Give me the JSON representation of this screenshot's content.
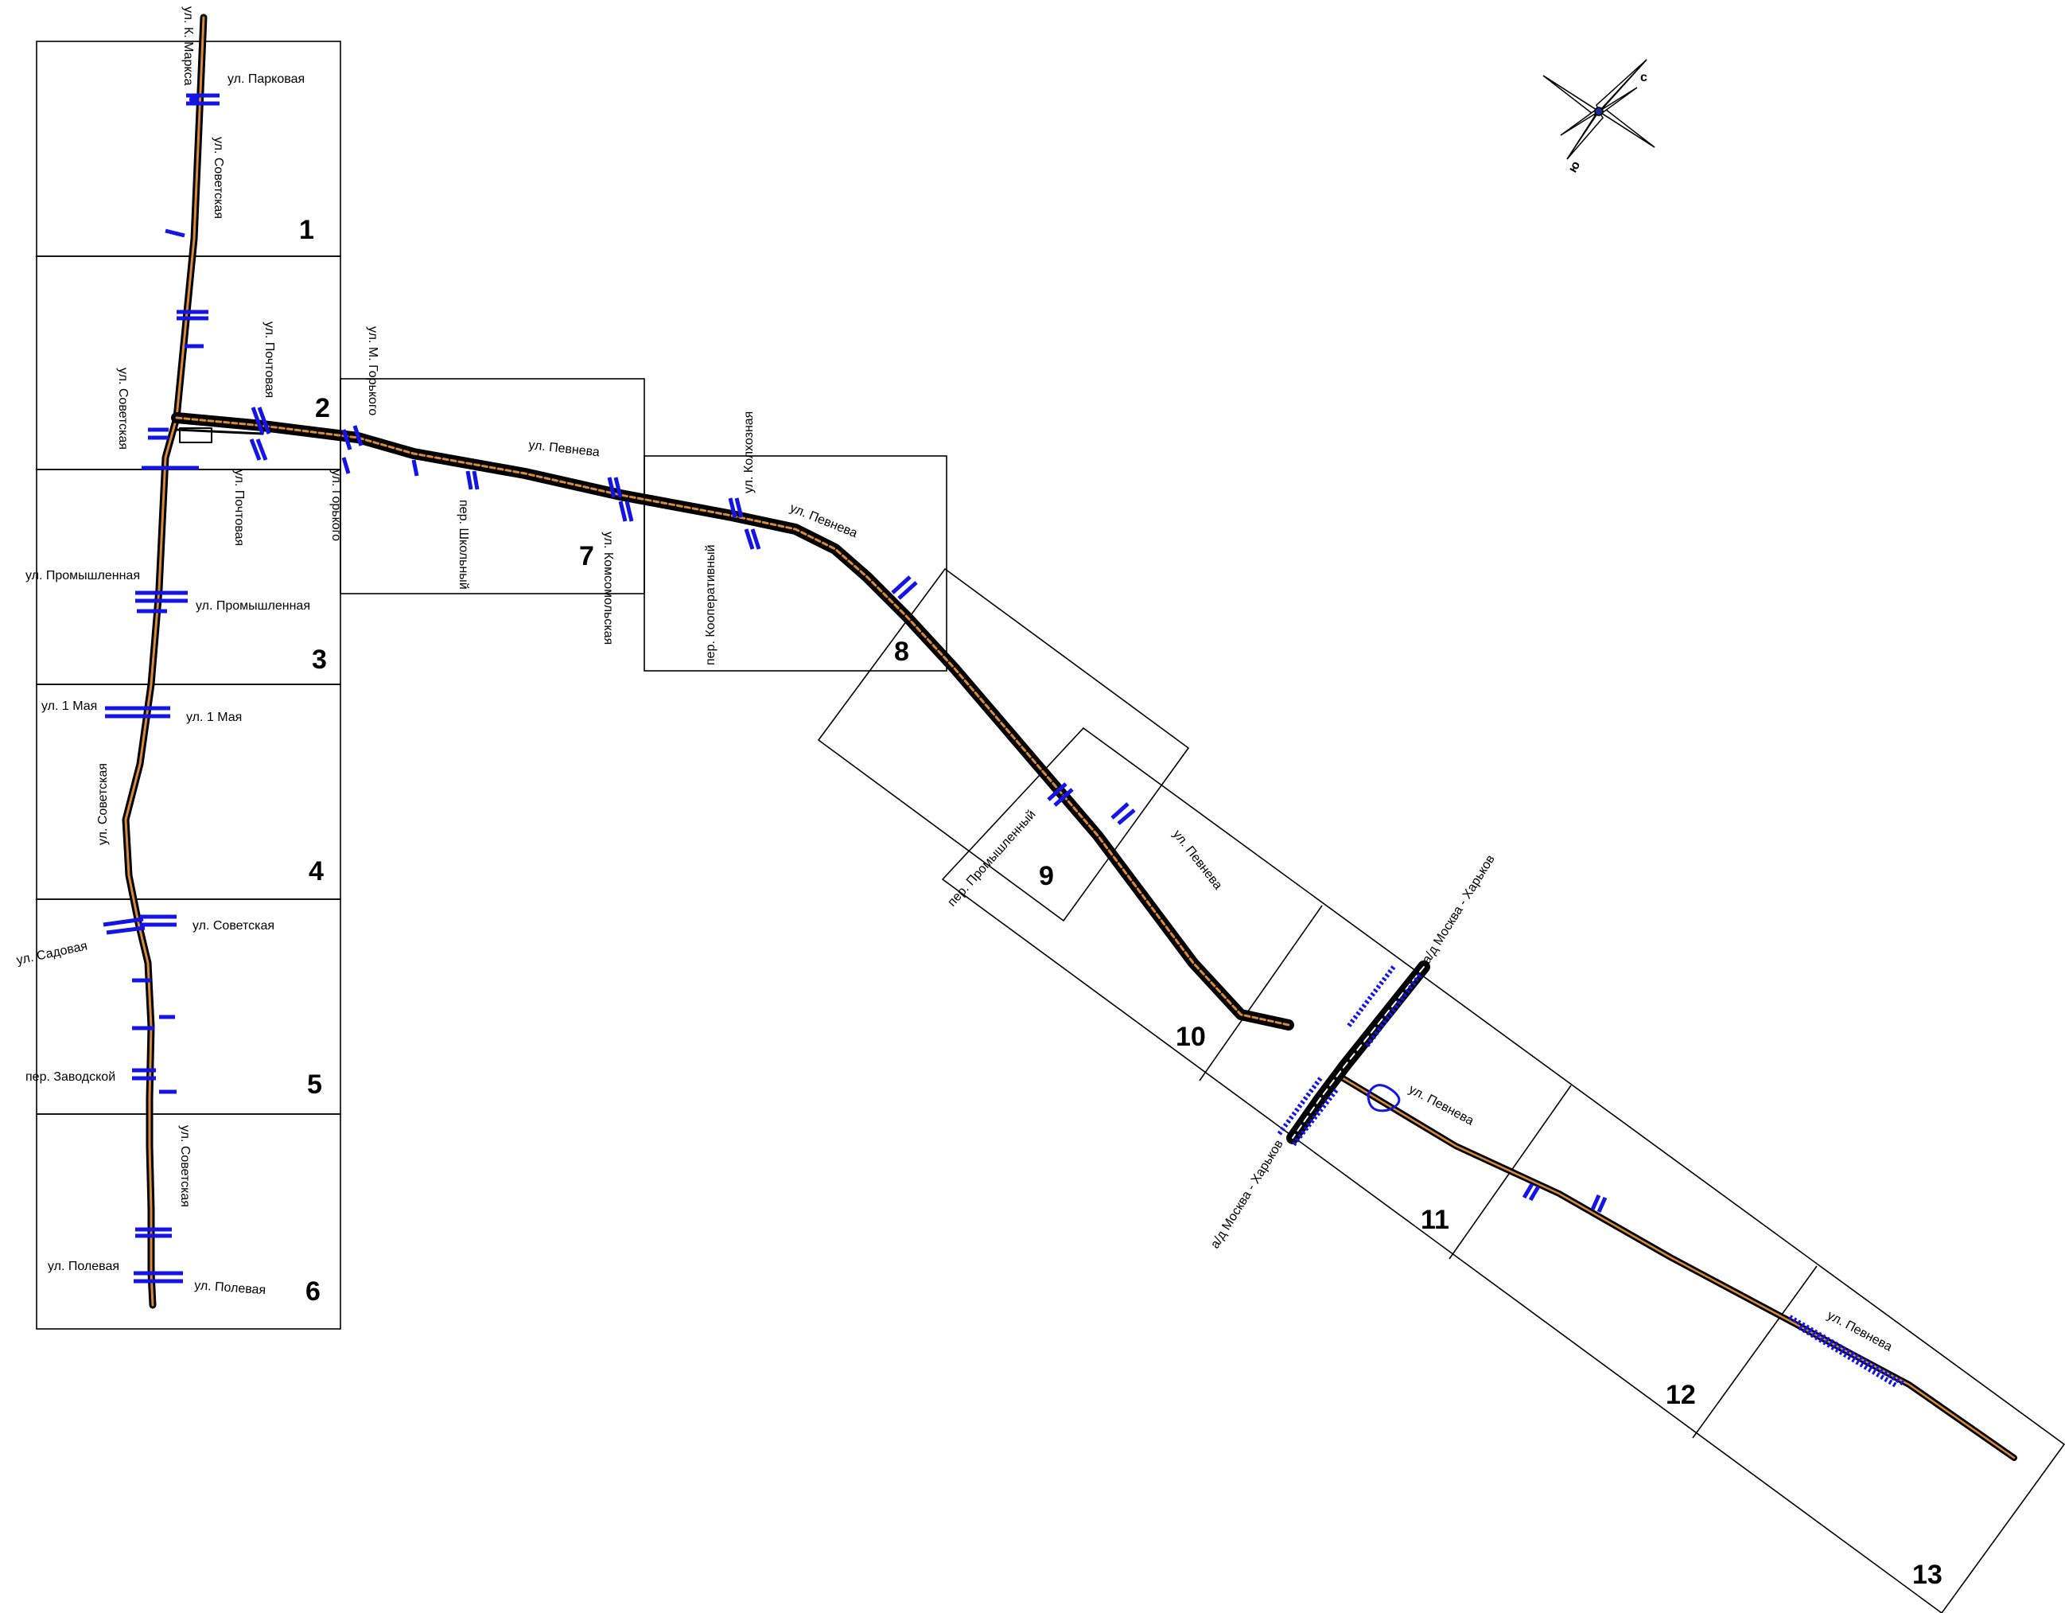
{
  "sheets": [
    "1",
    "2",
    "3",
    "4",
    "5",
    "6",
    "7",
    "8",
    "9",
    "10",
    "11",
    "12",
    "13"
  ],
  "streets": {
    "k_marksa": "ул. К. Маркса",
    "parkovaya": "ул. Парковая",
    "sovetskaya": "ул. Советская",
    "pochtovaya": "ул. Почтовая",
    "m_gorkogo": "ул. М. Горького",
    "gorkogo": "ул. Горького",
    "pevneva": "ул. Певнева",
    "shkolny": "пер. Школьный",
    "komsomolskaya": "ул. Комсомольская",
    "kolkhoznaya": "ул. Колхозная",
    "kooperativny": "пер. Кооперативный",
    "promyshlennaya": "ул. Промышленная",
    "may1": "ул. 1 Мая",
    "sadovaya": "ул. Садовая",
    "zavodskoy": "пер. Заводской",
    "polevaya": "ул. Полевая",
    "promyshlenny": "пер. Промышленный",
    "highway": "а/д Москва - Харьков"
  },
  "compass": {
    "north": "с",
    "south": "ю"
  },
  "colors": {
    "road": "#000000",
    "axis": "#d98a3a",
    "crossing": "#1414e6",
    "frame": "#000000",
    "compass_north": "#1c2f9e",
    "compass_south": "#c01818"
  }
}
